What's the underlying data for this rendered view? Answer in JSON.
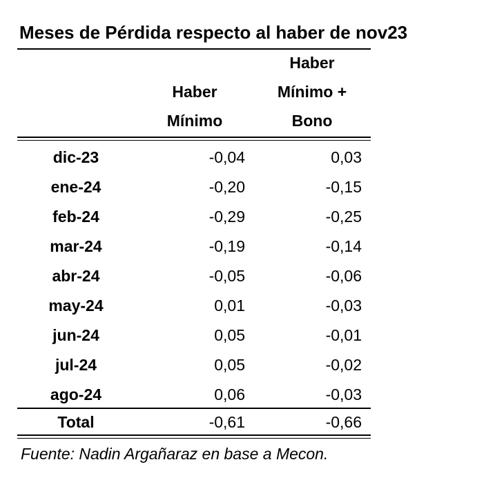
{
  "title": "Meses de Pérdida respecto al haber de nov23",
  "table": {
    "headers": [
      "Haber Mínimo",
      "Haber Mínimo + Bono"
    ],
    "rows": [
      [
        "dic-23",
        "-0,04",
        "0,03"
      ],
      [
        "ene-24",
        "-0,20",
        "-0,15"
      ],
      [
        "feb-24",
        "-0,29",
        "-0,25"
      ],
      [
        "mar-24",
        "-0,19",
        "-0,14"
      ],
      [
        "abr-24",
        "-0,05",
        "-0,06"
      ],
      [
        "may-24",
        "0,01",
        "-0,03"
      ],
      [
        "jun-24",
        "0,05",
        "-0,01"
      ],
      [
        "jul-24",
        "0,05",
        "-0,02"
      ],
      [
        "ago-24",
        "0,06",
        "-0,03"
      ]
    ],
    "total": [
      "Total",
      "-0,61",
      "-0,66"
    ]
  },
  "source": "Fuente: Nadin Argañaraz en base a Mecon."
}
